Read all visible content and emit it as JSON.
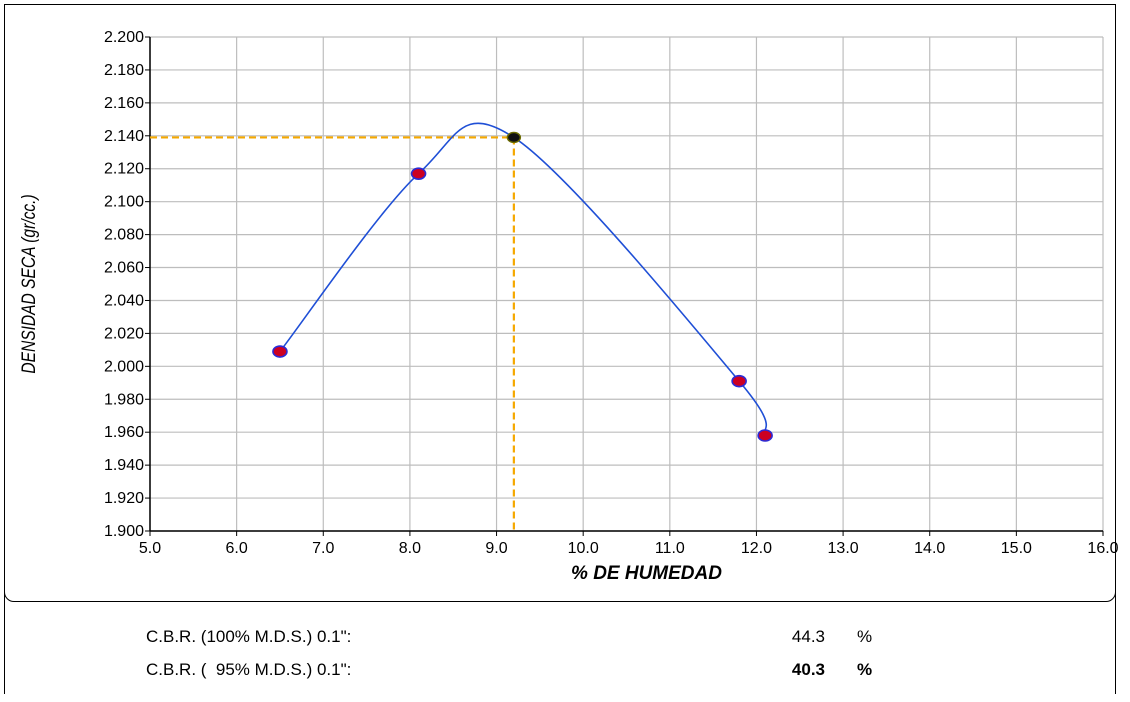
{
  "chart_data": {
    "type": "scatter",
    "title": "",
    "xlabel": "% DE HUMEDAD",
    "ylabel": "DENSIDAD SECA (gr/cc.)",
    "xlim": [
      5.0,
      16.0
    ],
    "ylim": [
      1.9,
      2.2
    ],
    "x_ticks": [
      "5.0",
      "6.0",
      "7.0",
      "8.0",
      "9.0",
      "10.0",
      "11.0",
      "12.0",
      "13.0",
      "14.0",
      "15.0",
      "16.0"
    ],
    "y_ticks": [
      "1.900",
      "1.920",
      "1.940",
      "1.960",
      "1.980",
      "2.000",
      "2.020",
      "2.040",
      "2.060",
      "2.080",
      "2.100",
      "2.120",
      "2.140",
      "2.160",
      "2.180",
      "2.200"
    ],
    "grid": true,
    "series": [
      {
        "points": [
          {
            "x": 6.5,
            "y": 2.009
          },
          {
            "x": 8.1,
            "y": 2.117
          },
          {
            "x": 11.8,
            "y": 1.991
          },
          {
            "x": 12.1,
            "y": 1.958
          }
        ],
        "marker_color": "#cc0022",
        "marker_edge": "#2b2bd6",
        "line_color": "#1f4fd6"
      }
    ],
    "max_point": {
      "x": 9.2,
      "y": 2.139,
      "color": "#111111",
      "guide_color": "#f5a800"
    }
  },
  "results": [
    {
      "label": "C.B.R. (100% M.D.S.) 0.1\":",
      "value": "44.3",
      "unit": "%"
    },
    {
      "label": "C.B.R. (  95% M.D.S.) 0.1\":",
      "value": "40.3",
      "unit": "%"
    }
  ]
}
